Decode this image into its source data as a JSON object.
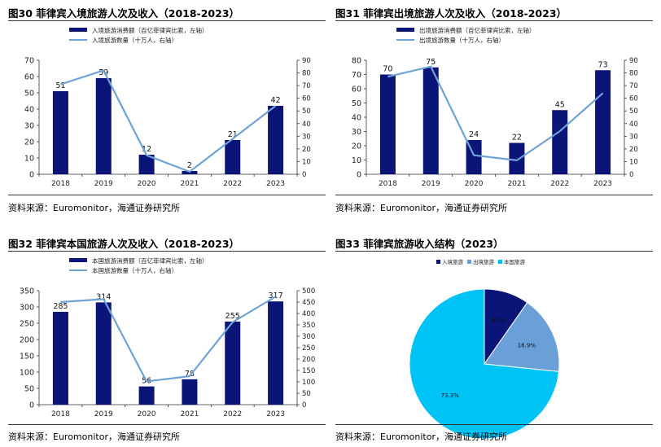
{
  "colors": {
    "bar": "#0b1477",
    "line": "#6fa3d6",
    "axis": "#333333"
  },
  "panels": [
    {
      "title": "图30 菲律宾入境旅游人次及收入（2018-2023）",
      "source": "资料来源：Euromonitor，海通证券研究所"
    },
    {
      "title": "图31 菲律宾出境旅游人次及收入（2018-2023）",
      "source": "资料来源：Euromonitor，海通证券研究所"
    },
    {
      "title": "图32 菲律宾本国旅游人次及收入（2018-2023）",
      "source": "资料来源：Euromonitor，海通证券研究所"
    },
    {
      "title": "图33 菲律宾旅游收入结构（2023）",
      "source": "资料来源：Euromonitor，海通证券研究所"
    }
  ],
  "chart_data": [
    {
      "type": "bar",
      "categories": [
        "2018",
        "2019",
        "2020",
        "2021",
        "2022",
        "2023"
      ],
      "series": [
        {
          "name": "入境旅游消费额（百亿菲律宾比索，左轴）",
          "kind": "bar",
          "axis": "left",
          "values": [
            51,
            59,
            12,
            2,
            21,
            42
          ],
          "labels": [
            "51",
            "59",
            "12",
            "2",
            "21",
            "42"
          ]
        },
        {
          "name": "入境旅游数量（十万人，右轴）",
          "kind": "line",
          "axis": "right",
          "values": [
            71,
            82,
            15,
            2,
            28,
            54
          ]
        }
      ],
      "ylim_left": [
        0,
        70
      ],
      "yticks_left": [
        0,
        10,
        20,
        30,
        40,
        50,
        60,
        70
      ],
      "ylim_right": [
        0,
        90
      ],
      "yticks_right": [
        0,
        10,
        20,
        30,
        40,
        50,
        60,
        70,
        80,
        90
      ],
      "legend": "top-center"
    },
    {
      "type": "bar",
      "categories": [
        "2018",
        "2019",
        "2020",
        "2021",
        "2022",
        "2023"
      ],
      "series": [
        {
          "name": "出境旅游消费额（百亿菲律宾比索，左轴）",
          "kind": "bar",
          "axis": "left",
          "values": [
            70,
            75,
            24,
            22,
            45,
            73
          ],
          "labels": [
            "70",
            "75",
            "24",
            "22",
            "45",
            "73"
          ]
        },
        {
          "name": "出境旅游数量（十万人，右轴）",
          "kind": "line",
          "axis": "right",
          "values": [
            77,
            85,
            15,
            11,
            34,
            64
          ]
        }
      ],
      "ylim_left": [
        0,
        80
      ],
      "yticks_left": [
        0,
        10,
        20,
        30,
        40,
        50,
        60,
        70,
        80
      ],
      "ylim_right": [
        0,
        90
      ],
      "yticks_right": [
        0,
        10,
        20,
        30,
        40,
        50,
        60,
        70,
        80,
        90
      ],
      "legend": "top-center"
    },
    {
      "type": "bar",
      "categories": [
        "2018",
        "2019",
        "2020",
        "2021",
        "2022",
        "2023"
      ],
      "series": [
        {
          "name": "本国旅游消费额（百亿菲律宾比索，左轴）",
          "kind": "bar",
          "axis": "left",
          "values": [
            285,
            314,
            56,
            78,
            255,
            317
          ],
          "labels": [
            "285",
            "314",
            "56",
            "78",
            "255",
            "317"
          ]
        },
        {
          "name": "本国旅游数量（十万人，右轴）",
          "kind": "line",
          "axis": "right",
          "values": [
            450,
            463,
            102,
            125,
            362,
            474
          ]
        }
      ],
      "ylim_left": [
        0,
        350
      ],
      "yticks_left": [
        0,
        50,
        100,
        150,
        200,
        250,
        300,
        350
      ],
      "ylim_right": [
        0,
        500
      ],
      "yticks_right": [
        0,
        50,
        100,
        150,
        200,
        250,
        300,
        350,
        400,
        450,
        500
      ],
      "legend": "top-center"
    },
    {
      "type": "pie",
      "slices": [
        {
          "label": "入境旅游",
          "value": 9.7,
          "text": "9.7%",
          "color": "#0b1477"
        },
        {
          "label": "出境旅游",
          "value": 16.9,
          "text": "16.9%",
          "color": "#6b9fd8"
        },
        {
          "label": "本国旅游",
          "value": 73.3,
          "text": "73.3%",
          "color": "#00c3f5"
        }
      ],
      "legend": "top-center"
    }
  ]
}
